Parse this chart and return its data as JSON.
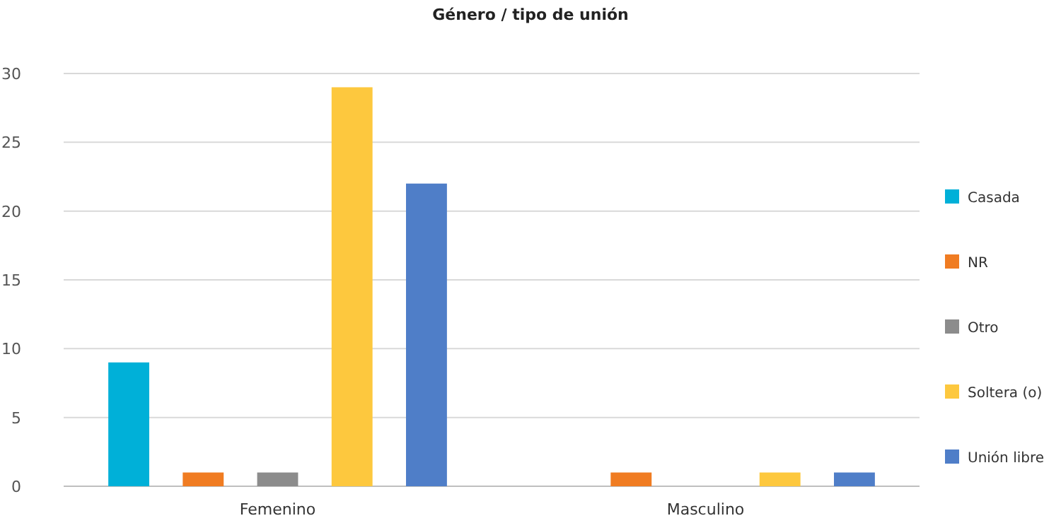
{
  "chart_data": {
    "type": "bar",
    "title": "Género / tipo de unión",
    "categories": [
      "Femenino",
      "Masculino"
    ],
    "series": [
      {
        "name": "Casada",
        "color": "#00b0d8",
        "values": [
          9,
          0
        ]
      },
      {
        "name": "NR",
        "color": "#f07c22",
        "values": [
          1,
          1
        ]
      },
      {
        "name": "Otro",
        "color": "#8c8c8c",
        "values": [
          1,
          0
        ]
      },
      {
        "name": "Soltera (o)",
        "color": "#fdc83e",
        "values": [
          29,
          1
        ]
      },
      {
        "name": "Unión libre",
        "color": "#4f7ec8",
        "values": [
          22,
          1
        ]
      }
    ],
    "ylim": [
      0,
      30
    ],
    "yticks": [
      0,
      5,
      10,
      15,
      20,
      25,
      30
    ],
    "grid": "y",
    "legend": "right"
  }
}
